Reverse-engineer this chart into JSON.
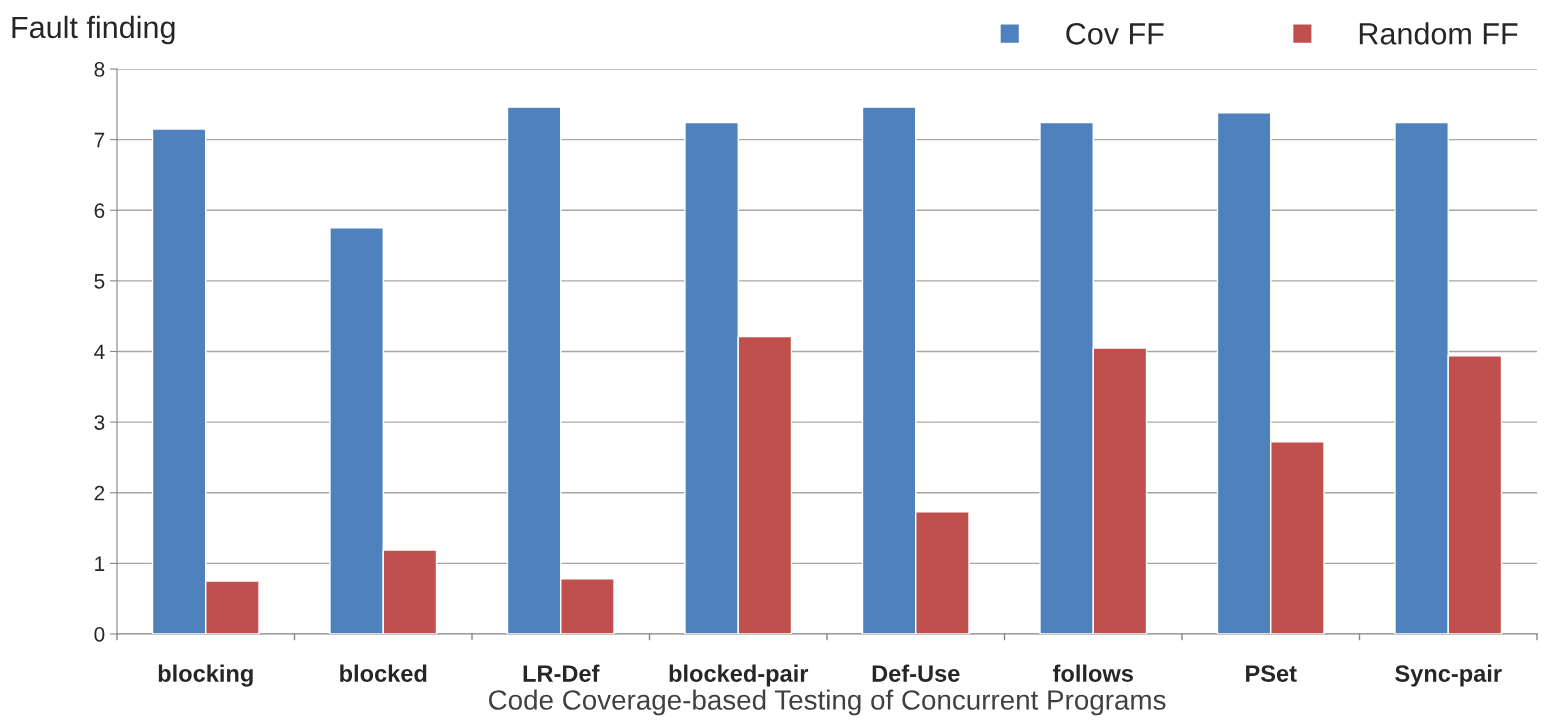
{
  "chart_data": {
    "type": "bar",
    "ylabel": "Fault finding",
    "xlabel": "Code Coverage-based Testing of Concurrent Programs",
    "categories": [
      "blocking",
      "blocked",
      "LR-Def",
      "blocked-pair",
      "Def-Use",
      "follows",
      "PSet",
      "Sync-pair"
    ],
    "series": [
      {
        "name": "Cov FF",
        "color": "#4f81bd",
        "values": [
          7.15,
          5.75,
          7.46,
          7.24,
          7.46,
          7.24,
          7.38,
          7.24
        ]
      },
      {
        "name": "Random FF",
        "color": "#c0504d",
        "values": [
          0.75,
          1.19,
          0.78,
          4.21,
          1.73,
          4.05,
          2.72,
          3.94
        ]
      }
    ],
    "ylim": [
      0,
      8
    ],
    "yticks": [
      0,
      1,
      2,
      3,
      4,
      5,
      6,
      7,
      8
    ],
    "grid": "y",
    "legend": "top right"
  }
}
